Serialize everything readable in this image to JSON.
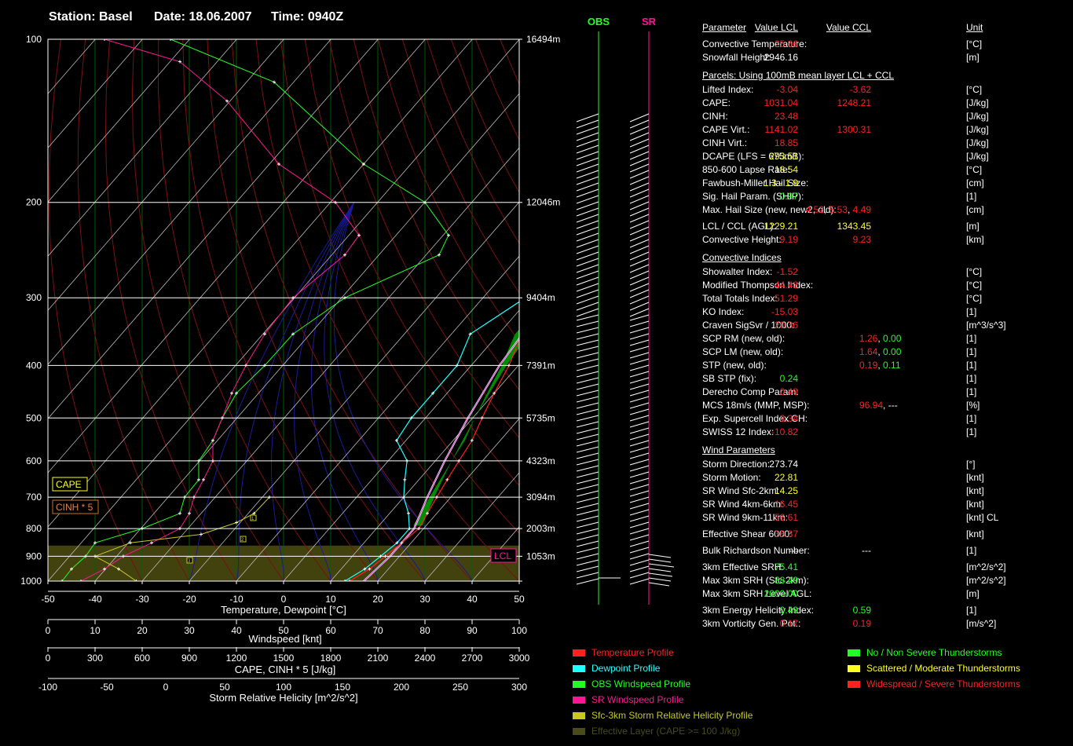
{
  "header": {
    "station": "Station: Basel",
    "date": "Date: 18.06.2007",
    "time": "Time: 0940Z"
  },
  "colors": {
    "temperature": "#ff2020",
    "dewpoint": "#20ffff",
    "obs_wind": "#20ff20",
    "sr_wind": "#ff1493",
    "srh": "#c8c820",
    "effective_layer": "#4a4a1a",
    "cape_fill": "#008c00",
    "ok": "#20ff20",
    "moderate": "#ffff20",
    "severe": "#ff2020"
  },
  "chart_data": {
    "type": "line",
    "title": "",
    "xlabel": "Temperature, Dewpoint [°C]",
    "ylabel": "",
    "temperature_ticks": [
      "-50",
      "-40",
      "-30",
      "-20",
      "-10",
      "0",
      "10",
      "20",
      "30",
      "40",
      "50"
    ],
    "windspeed_label": "Windspeed [knt]",
    "windspeed_ticks": [
      "0",
      "10",
      "20",
      "30",
      "40",
      "50",
      "60",
      "70",
      "80",
      "90",
      "100"
    ],
    "cape_label": "CAPE, CINH * 5 [J/kg]",
    "cape_ticks": [
      "0",
      "300",
      "600",
      "900",
      "1200",
      "1500",
      "1800",
      "2100",
      "2400",
      "2700",
      "3000"
    ],
    "srh_label": "Storm Relative Helicity [m^2/s^2]",
    "srh_ticks": [
      "-100",
      "-50",
      "0",
      "50",
      "100",
      "150",
      "200",
      "250",
      "300"
    ],
    "pressure_levels": [
      {
        "p": 100,
        "label": "100",
        "h": "16494m"
      },
      {
        "p": 200,
        "label": "200",
        "h": "12046m"
      },
      {
        "p": 300,
        "label": "300",
        "h": "9404m"
      },
      {
        "p": 400,
        "label": "400",
        "h": "7391m"
      },
      {
        "p": 500,
        "label": "500",
        "h": "5735m"
      },
      {
        "p": 600,
        "label": "600",
        "h": "4323m"
      },
      {
        "p": 700,
        "label": "700",
        "h": "3094m"
      },
      {
        "p": 800,
        "label": "800",
        "h": "2003m"
      },
      {
        "p": 900,
        "label": "900",
        "h": "1053m"
      },
      {
        "p": 1000,
        "label": "1000",
        "h": ""
      }
    ],
    "series": [
      {
        "name": "Temperature Profile",
        "points": [
          [
            1000,
            14
          ],
          [
            950,
            16
          ],
          [
            900,
            17
          ],
          [
            850,
            18
          ],
          [
            800,
            19
          ],
          [
            750,
            18
          ],
          [
            700,
            17
          ],
          [
            650,
            16
          ],
          [
            600,
            15
          ],
          [
            550,
            14
          ],
          [
            500,
            12
          ],
          [
            450,
            10
          ],
          [
            400,
            8
          ],
          [
            350,
            5
          ],
          [
            300,
            5
          ],
          [
            250,
            4
          ],
          [
            200,
            4
          ],
          [
            150,
            5
          ],
          [
            100,
            14
          ]
        ]
      },
      {
        "name": "Dewpoint Profile",
        "points": [
          [
            1000,
            13
          ],
          [
            950,
            15
          ],
          [
            900,
            16
          ],
          [
            850,
            17
          ],
          [
            800,
            17
          ],
          [
            750,
            14
          ],
          [
            700,
            10
          ],
          [
            650,
            7
          ],
          [
            600,
            4
          ],
          [
            550,
            -2
          ],
          [
            500,
            -3
          ],
          [
            450,
            -3
          ],
          [
            400,
            -3
          ],
          [
            350,
            -6
          ],
          [
            300,
            -1
          ],
          [
            250,
            1
          ],
          [
            200,
            6
          ],
          [
            150,
            10
          ],
          [
            100,
            17
          ]
        ]
      },
      {
        "name": "Parcel",
        "points": [
          [
            1000,
            17
          ],
          [
            900,
            18
          ],
          [
            850,
            18
          ],
          [
            800,
            18
          ],
          [
            700,
            15
          ],
          [
            600,
            12
          ],
          [
            500,
            9
          ],
          [
            400,
            6
          ],
          [
            300,
            4
          ],
          [
            250,
            2
          ],
          [
            200,
            4
          ],
          [
            150,
            5
          ],
          [
            100,
            12
          ]
        ]
      }
    ],
    "obs_wind": [
      [
        1000,
        3
      ],
      [
        950,
        5
      ],
      [
        900,
        8
      ],
      [
        850,
        10
      ],
      [
        800,
        20
      ],
      [
        750,
        28
      ],
      [
        700,
        29
      ],
      [
        650,
        32
      ],
      [
        600,
        32
      ],
      [
        550,
        35
      ],
      [
        500,
        37
      ],
      [
        450,
        40
      ],
      [
        400,
        46
      ],
      [
        350,
        52
      ],
      [
        300,
        63
      ],
      [
        250,
        83
      ],
      [
        230,
        85
      ],
      [
        200,
        80
      ],
      [
        170,
        67
      ],
      [
        120,
        48
      ],
      [
        100,
        26
      ]
    ],
    "sr_wind": [
      [
        1000,
        7
      ],
      [
        950,
        12
      ],
      [
        900,
        16
      ],
      [
        850,
        22
      ],
      [
        800,
        28
      ],
      [
        750,
        30
      ],
      [
        700,
        31
      ],
      [
        650,
        33
      ],
      [
        600,
        35
      ],
      [
        550,
        35
      ],
      [
        500,
        37
      ],
      [
        450,
        39
      ],
      [
        400,
        42
      ],
      [
        350,
        46
      ],
      [
        300,
        52
      ],
      [
        250,
        63
      ],
      [
        230,
        66
      ],
      [
        200,
        61
      ],
      [
        170,
        49
      ],
      [
        130,
        38
      ],
      [
        110,
        28
      ],
      [
        100,
        12
      ]
    ],
    "srh": [
      [
        1000,
        -25
      ],
      [
        950,
        -40
      ],
      [
        900,
        -60
      ],
      [
        850,
        -30
      ],
      [
        820,
        30
      ],
      [
        780,
        60
      ],
      [
        750,
        75
      ],
      [
        700,
        88
      ]
    ],
    "cape_marks": [
      "CAPE",
      "CINH * 5"
    ],
    "lcl_label": "LCL",
    "srh_marks": [
      "1",
      "2",
      "3"
    ]
  },
  "wind_columns": {
    "obs": "OBS",
    "sr": "SR"
  },
  "table": {
    "headers": {
      "param": "Parameter",
      "lcl": "Value LCL",
      "ccl": "Value CCL",
      "unit": "Unit"
    },
    "top": [
      {
        "n": "Convective Temperature:",
        "v1": "25.66",
        "c1": "severe",
        "v2": "",
        "c2": "",
        "u": "[°C]"
      },
      {
        "n": "Snowfall Height:",
        "v1": "2946.16",
        "c1": "white",
        "v2": "",
        "c2": "",
        "u": "[m]"
      }
    ],
    "parcels_title": "Parcels: Using 100mB mean layer LCL + CCL",
    "parcels": [
      {
        "n": "Lifted Index:",
        "v1": "-3.04",
        "c1": "severe",
        "v2": "-3.62",
        "c2": "severe",
        "u": "[°C]"
      },
      {
        "n": "CAPE:",
        "v1": "1031.04",
        "c1": "severe",
        "v2": "1248.21",
        "c2": "severe",
        "u": "[J/kg]"
      },
      {
        "n": "CINH:",
        "v1": "23.48",
        "c1": "severe",
        "v2": "",
        "c2": "",
        "u": "[J/kg]"
      },
      {
        "n": "CAPE Virt.:",
        "v1": "1141.02",
        "c1": "severe",
        "v2": "1300.31",
        "c2": "severe",
        "u": "[J/kg]"
      },
      {
        "n": "CINH Virt.:",
        "v1": "18.85",
        "c1": "severe",
        "v2": "",
        "c2": "",
        "u": "[J/kg]"
      },
      {
        "n": "DCAPE (LFS = 675mB):",
        "v1": "293.51",
        "c1": "moderate",
        "v2": "",
        "c2": "",
        "u": "[J/kg]"
      },
      {
        "n": "850-600 Lapse Rate:",
        "v1": "18.54",
        "c1": "moderate",
        "v2": "",
        "c2": "",
        "u": "[°C]"
      },
      {
        "n": "Fawbush-Miller Hail Size:",
        "v1": "1.3 - 1.9",
        "c1": "moderate",
        "v2": "",
        "c2": "",
        "u": "[cm]"
      },
      {
        "n": "Sig. Hail Param. (SHIP):",
        "v1": "0.97",
        "c1": "ok",
        "v2": "",
        "c2": "",
        "u": "[1]"
      },
      {
        "n": "Max. Hail Size (new, new2, old):",
        "v1": "",
        "c1": "",
        "v2": "",
        "c2": "",
        "u": "[cm]",
        "multi": [
          "4.52",
          ", ",
          "5.53",
          ", ",
          "4.49"
        ]
      },
      {
        "n": "LCL / CCL (AGL):",
        "v1": "1229.21",
        "c1": "moderate",
        "v2": "1343.45",
        "c2": "moderate",
        "u": "[m]",
        "gap": true
      },
      {
        "n": "Convective Height:",
        "v1": "9.19",
        "c1": "severe",
        "v2": "9.23",
        "c2": "severe",
        "u": "[km]"
      }
    ],
    "convective_title": "Convective Indices",
    "convective": [
      {
        "n": "Showalter Index:",
        "v1": "-1.52",
        "c1": "severe",
        "u": "[°C]"
      },
      {
        "n": "Modified Thompson Index:",
        "v1": "44.43",
        "c1": "severe",
        "u": "[°C]"
      },
      {
        "n": "Total Totals Index:",
        "v1": "51.29",
        "c1": "severe",
        "u": "[°C]"
      },
      {
        "n": "KO Index:",
        "v1": "-15.03",
        "c1": "severe",
        "u": "[1]"
      },
      {
        "n": "Craven SigSvr / 1000:",
        "v1": "20.36",
        "c1": "severe",
        "u": "[m^3/s^3]"
      },
      {
        "n": "SCP RM (new, old):",
        "v1": "1.26",
        "c1": "severe",
        "x": "0.00",
        "xc": "ok",
        "u": "[1]"
      },
      {
        "n": "SCP LM (new, old):",
        "v1": "1.64",
        "c1": "severe",
        "x": "0.00",
        "xc": "ok",
        "u": "[1]"
      },
      {
        "n": "STP (new, old):",
        "v1": "0.19",
        "c1": "severe",
        "x": "0.11",
        "xc": "ok",
        "u": "[1]"
      },
      {
        "n": "SB STP (fix):",
        "v1": "0.24",
        "c1": "ok",
        "u": "[1]"
      },
      {
        "n": "Derecho Comp Param:",
        "v1": "0.49",
        "c1": "severe",
        "u": "[1]"
      },
      {
        "n": "MCS 18m/s (MMP, MSP):",
        "v1": "96.94",
        "c1": "severe",
        "x": "---",
        "xc": "white",
        "u": "[%]"
      },
      {
        "n": "Exp. Supercell Index CH:",
        "v1": "3.34",
        "c1": "severe",
        "u": "[1]"
      },
      {
        "n": "SWISS 12 Index:",
        "v1": "-10.82",
        "c1": "severe",
        "u": "[1]"
      }
    ],
    "wind_title": "Wind Parameters",
    "wind": [
      {
        "n": "Storm Direction:",
        "v1": "273.74",
        "c1": "white",
        "v2": "",
        "c2": "",
        "u": "[°]"
      },
      {
        "n": "Storm Motion:",
        "v1": "22.81",
        "c1": "moderate",
        "v2": "",
        "c2": "",
        "u": "[knt]"
      },
      {
        "n": "SR Wind Sfc-2km:",
        "v1": "14.25",
        "c1": "moderate",
        "v2": "",
        "c2": "",
        "u": "[knt]"
      },
      {
        "n": "SR Wind 4km-6km:",
        "v1": "16.45",
        "c1": "severe",
        "v2": "",
        "c2": "",
        "u": "[knt]"
      },
      {
        "n": "SR Wind 9km-11km:",
        "v1": "56.61",
        "c1": "severe",
        "v2": "",
        "c2": "",
        "u": "[knt] CL"
      },
      {
        "n": "Effective Shear 6000:",
        "v1": "38.37",
        "c1": "severe",
        "v2": "",
        "c2": "",
        "u": "[knt]",
        "gap": true
      },
      {
        "n": "Bulk Richardson Number:",
        "v1": "---",
        "c1": "white",
        "v2": "---",
        "c2": "white",
        "u": "[1]",
        "gap": true
      },
      {
        "n": "3km Effective SRH:",
        "v1": "75.41",
        "c1": "ok",
        "v2": "",
        "c2": "",
        "u": "[m^2/s^2]",
        "gap": true
      },
      {
        "n": "Max 3km SRH (Sfc-2km):",
        "v1": "88.49",
        "c1": "ok",
        "v2": "",
        "c2": "",
        "u": "[m^2/s^2]"
      },
      {
        "n": "Max 3km SRH Level AGL:",
        "v1": "2000.00",
        "c1": "ok",
        "v2": "",
        "c2": "",
        "u": "[m]"
      },
      {
        "n": "3km Energy Helicity Index:",
        "v1": "0.49",
        "c1": "ok",
        "v2": "0.59",
        "c2": "ok",
        "u": "[1]",
        "gap": true
      },
      {
        "n": "3km Vorticity Gen. Pot.:",
        "v1": "0.17",
        "c1": "severe",
        "v2": "0.19",
        "c2": "severe",
        "u": "[m/s^2]"
      }
    ]
  },
  "legend_left": [
    {
      "label": "Temperature Profile",
      "color": "#ff2020",
      "text": "#ff2020"
    },
    {
      "label": "Dewpoint Profile",
      "color": "#20ffff",
      "text": "#20ffff"
    },
    {
      "label": "OBS Windspeed Profile",
      "color": "#20ff20",
      "text": "#20ff20"
    },
    {
      "label": "SR Windspeed Profile",
      "color": "#ff1493",
      "text": "#ff1493"
    },
    {
      "label": "Sfc-3km Storm Relative Helicity Profile",
      "color": "#c8c820",
      "text": "#c8c820"
    },
    {
      "label": "Effective Layer (CAPE >= 100 J/kg)",
      "color": "#4a4a1a",
      "text": "#4a4a1a"
    }
  ],
  "legend_right": [
    {
      "label": "No / Non Severe Thunderstorms",
      "color": "#20ff20",
      "text": "#20ff20"
    },
    {
      "label": "Scattered / Moderate Thunderstorms",
      "color": "#ffff20",
      "text": "#ffff20"
    },
    {
      "label": "Widespread / Severe Thunderstorms",
      "color": "#ff2020",
      "text": "#ff2020"
    }
  ]
}
